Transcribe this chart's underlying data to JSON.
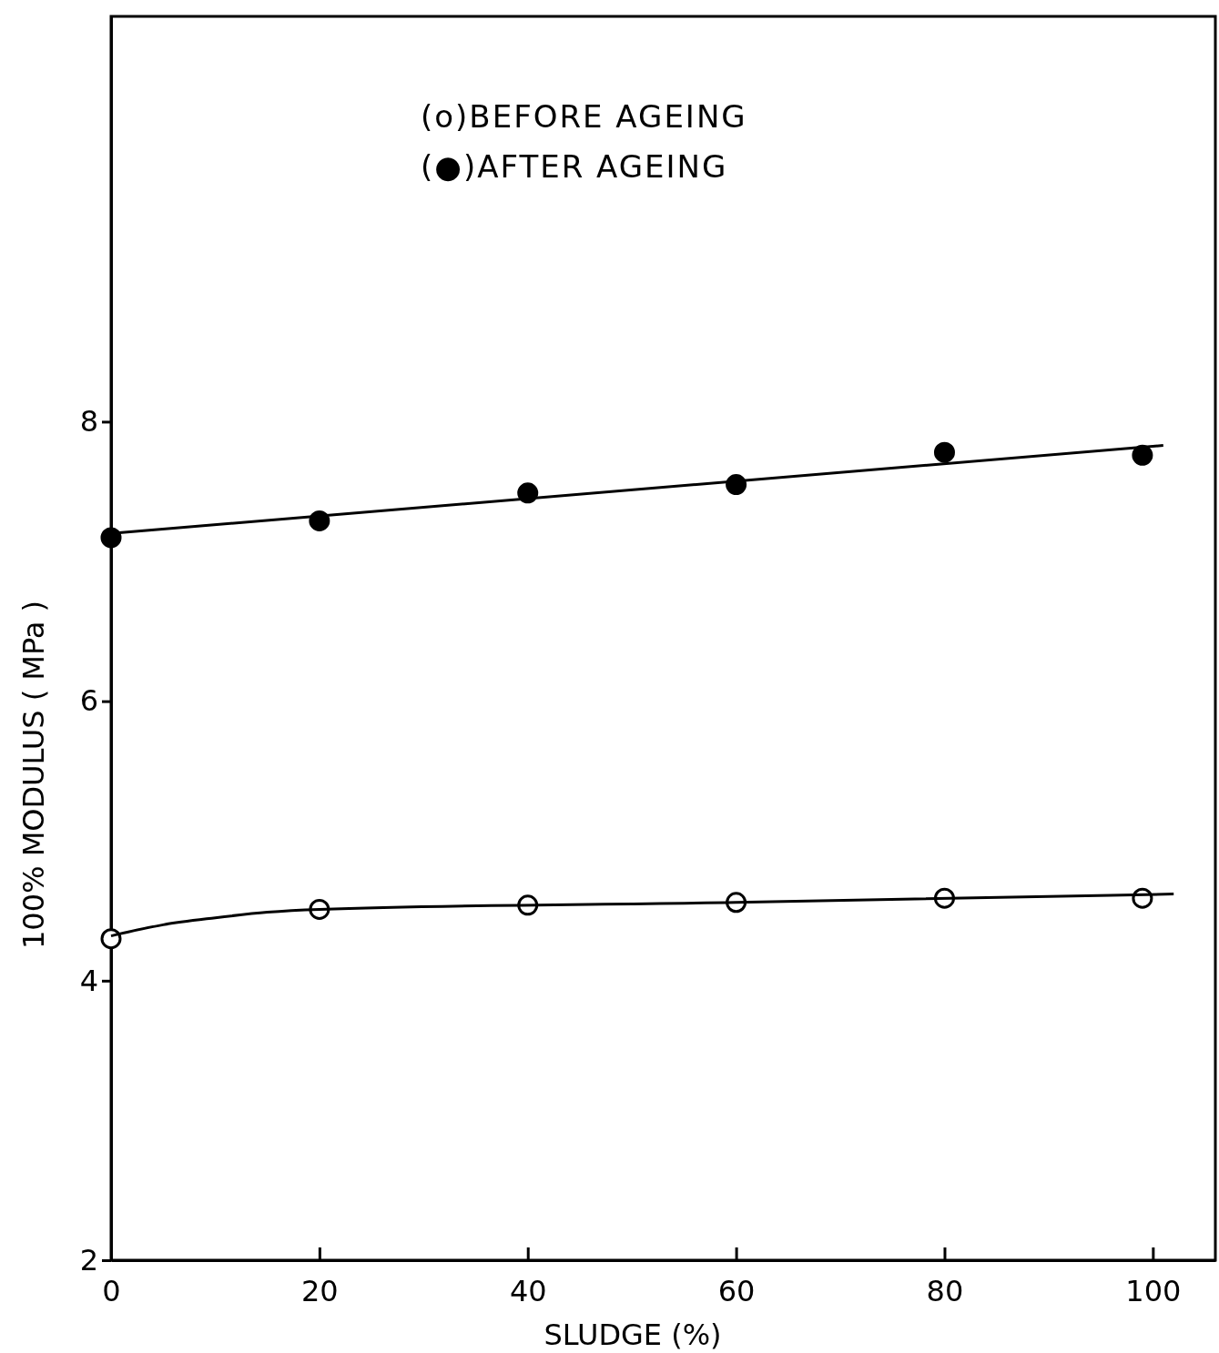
{
  "chart_data": {
    "type": "scatter",
    "xlabel": "SLUDGE (%)",
    "ylabel": "100% MODULUS ( MPa )",
    "xlim": [
      0,
      106
    ],
    "xticks": [
      0,
      20,
      40,
      60,
      80,
      100
    ],
    "ylim": [
      2,
      10.9
    ],
    "yticks": [
      2,
      4,
      6,
      8
    ],
    "annotations": [
      "(o)BEFORE AGEING",
      "(●)AFTER AGEING"
    ],
    "series": [
      {
        "color": "#ffffff",
        "marker": "circle",
        "x": [
          0,
          20,
          40,
          60,
          80,
          99
        ],
        "values": [
          4.3,
          4.51,
          4.54,
          4.56,
          4.59,
          4.59
        ]
      },
      {
        "color": "#000000",
        "marker": "circle",
        "x": [
          0,
          20,
          40,
          60,
          80,
          99
        ],
        "values": [
          7.17,
          7.29,
          7.49,
          7.55,
          7.78,
          7.76
        ]
      },
      {
        "type": "line",
        "color": "#000000",
        "x": [
          0,
          5,
          10,
          15,
          20,
          60,
          102
        ],
        "values": [
          4.32,
          4.4,
          4.45,
          4.49,
          4.51,
          4.56,
          4.62
        ]
      },
      {
        "type": "line",
        "color": "#000000",
        "x": [
          0,
          101
        ],
        "values": [
          7.2,
          7.83
        ]
      }
    ]
  }
}
